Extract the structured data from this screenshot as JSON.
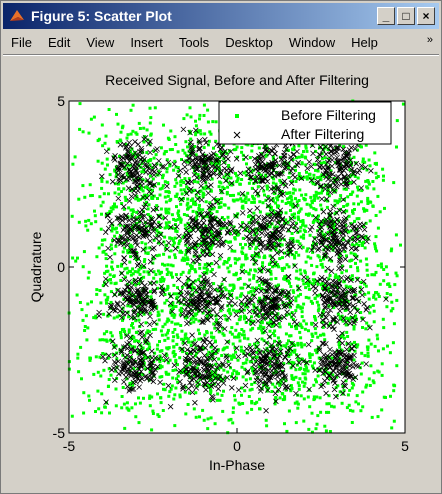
{
  "window": {
    "title": "Figure 5: Scatter Plot",
    "buttons": {
      "minimize": "_",
      "maximize": "□",
      "close": "×"
    }
  },
  "menubar": {
    "items": [
      "File",
      "Edit",
      "View",
      "Insert",
      "Tools",
      "Desktop",
      "Window",
      "Help"
    ],
    "overflow_icon": "chevron-right-double-icon"
  },
  "colors": {
    "before": "#00ff00",
    "after": "#000000",
    "title_start": "#0a246a",
    "title_end": "#a6caf0"
  },
  "chart_data": {
    "type": "scatter",
    "title": "Received Signal, Before and After Filtering",
    "xlabel": "In-Phase",
    "ylabel": "Quadrature",
    "xlim": [
      -5,
      5
    ],
    "ylim": [
      -5,
      5
    ],
    "xticks": [
      "-5",
      "0",
      "5"
    ],
    "yticks": [
      "-5",
      "0",
      "5"
    ],
    "legend_position": "top-right",
    "series": [
      {
        "name": "Before Filtering",
        "marker": "dot",
        "centers_x": [
          -3,
          -1,
          1,
          3
        ],
        "centers_y": [
          -3,
          -1,
          1,
          3
        ],
        "spread": 1.0,
        "points_per_center": 200
      },
      {
        "name": "After Filtering",
        "marker": "x",
        "centers_x": [
          -3,
          -1,
          1,
          3
        ],
        "centers_y": [
          -3,
          -1,
          1,
          3
        ],
        "spread": 0.4,
        "points_per_center": 130
      }
    ]
  }
}
